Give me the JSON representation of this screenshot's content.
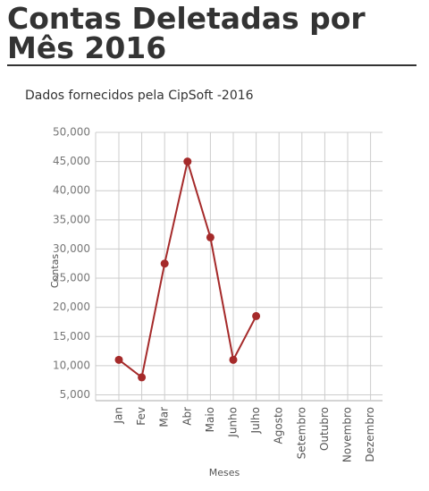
{
  "chart_data": {
    "type": "line",
    "title": "Contas Deletadas por Mês 2016",
    "subtitle": "Dados fornecidos pela CipSoft -2016",
    "x_label": "Meses",
    "y_label": "Contas",
    "categories": [
      "Jan",
      "Fev",
      "Mar",
      "Abr",
      "Maio",
      "Junho",
      "Julho",
      "Agosto",
      "Setembro",
      "Outubro",
      "Novembro",
      "Dezembro"
    ],
    "series": [
      {
        "name": "Contas",
        "color": "#a52a2a",
        "values": [
          11000,
          8000,
          27500,
          45000,
          32000,
          11000,
          18500,
          null,
          null,
          null,
          null,
          null
        ]
      }
    ],
    "ylim": [
      4000,
      50000
    ],
    "yticks": [
      {
        "value": 5000,
        "label": "5,000"
      },
      {
        "value": 10000,
        "label": "10,000"
      },
      {
        "value": 15000,
        "label": "15,000"
      },
      {
        "value": 20000,
        "label": "20,000"
      },
      {
        "value": 25000,
        "label": "25,000"
      },
      {
        "value": 30000,
        "label": "30,000"
      },
      {
        "value": 35000,
        "label": "35,000"
      },
      {
        "value": 40000,
        "label": "40,000"
      },
      {
        "value": 45000,
        "label": "45,000"
      },
      {
        "value": 50000,
        "label": "50,000"
      }
    ],
    "grid": true
  }
}
